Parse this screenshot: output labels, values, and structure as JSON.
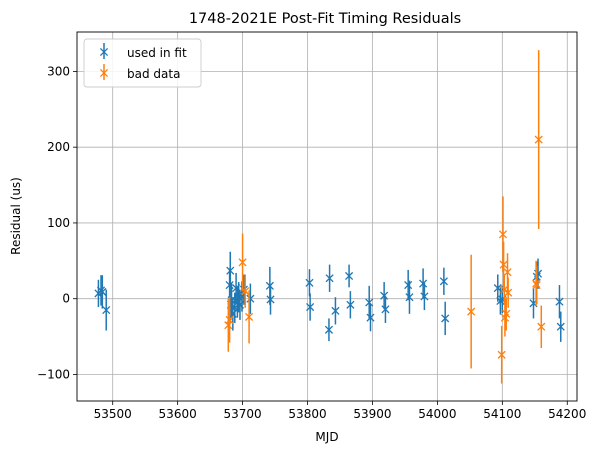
{
  "chart_data": {
    "type": "scatter",
    "title": "1748-2021E Post-Fit Timing Residuals",
    "xlabel": "MJD",
    "ylabel": "Residual (us)",
    "xlim": [
      53445,
      54215
    ],
    "ylim": [
      -135,
      352
    ],
    "xticks": [
      53500,
      53600,
      53700,
      53800,
      53900,
      54000,
      54100,
      54200
    ],
    "yticks": [
      -100,
      0,
      100,
      200,
      300
    ],
    "grid": true,
    "legend_position": "top-left",
    "series": [
      {
        "name": "used in fit",
        "color": "#1f77b4",
        "marker": "x",
        "points": [
          [
            53478,
            7,
            18
          ],
          [
            53482,
            11,
            20
          ],
          [
            53484,
            9,
            22
          ],
          [
            53490,
            -15,
            27
          ],
          [
            53680,
            18,
            22
          ],
          [
            53681,
            37,
            25
          ],
          [
            53682,
            -8,
            20
          ],
          [
            53683,
            -2,
            22
          ],
          [
            53685,
            -20,
            22
          ],
          [
            53688,
            -12,
            20
          ],
          [
            53690,
            14,
            20
          ],
          [
            53692,
            -5,
            20
          ],
          [
            53694,
            2,
            20
          ],
          [
            53696,
            -8,
            20
          ],
          [
            53699,
            3,
            20
          ],
          [
            53702,
            12,
            20
          ],
          [
            53712,
            0,
            20
          ],
          [
            53742,
            17,
            25
          ],
          [
            53743,
            -1,
            20
          ],
          [
            53803,
            21,
            18
          ],
          [
            53804,
            -11,
            18
          ],
          [
            53833,
            -41,
            15
          ],
          [
            53834,
            27,
            18
          ],
          [
            53843,
            -16,
            18
          ],
          [
            53864,
            30,
            15
          ],
          [
            53866,
            -8,
            18
          ],
          [
            53895,
            -5,
            22
          ],
          [
            53897,
            -25,
            18
          ],
          [
            53918,
            4,
            18
          ],
          [
            53920,
            -14,
            18
          ],
          [
            53955,
            18,
            20
          ],
          [
            53957,
            2,
            22
          ],
          [
            53978,
            20,
            20
          ],
          [
            53980,
            3,
            18
          ],
          [
            54010,
            23,
            18
          ],
          [
            54012,
            -26,
            22
          ],
          [
            54093,
            14,
            18
          ],
          [
            54097,
            -3,
            18
          ],
          [
            54100,
            -1,
            18
          ],
          [
            54148,
            -6,
            20
          ],
          [
            54153,
            29,
            20
          ],
          [
            54155,
            33,
            20
          ],
          [
            54188,
            -4,
            22
          ],
          [
            54190,
            -37,
            20
          ]
        ]
      },
      {
        "name": "bad data",
        "color": "#ff7f0e",
        "marker": "x",
        "points": [
          [
            53678,
            -35,
            35
          ],
          [
            53680,
            -28,
            30
          ],
          [
            53700,
            48,
            38
          ],
          [
            53704,
            10,
            22
          ],
          [
            53710,
            -24,
            35
          ],
          [
            54052,
            -17,
            75
          ],
          [
            54099,
            -74,
            38
          ],
          [
            54101,
            85,
            50
          ],
          [
            54102,
            45,
            30
          ],
          [
            54103,
            12,
            20
          ],
          [
            54104,
            -25,
            25
          ],
          [
            54106,
            -20,
            22
          ],
          [
            54108,
            35,
            25
          ],
          [
            54109,
            8,
            20
          ],
          [
            54152,
            20,
            30
          ],
          [
            54153,
            18,
            25
          ],
          [
            54156,
            210,
            118
          ],
          [
            54160,
            -37,
            28
          ]
        ]
      }
    ]
  }
}
